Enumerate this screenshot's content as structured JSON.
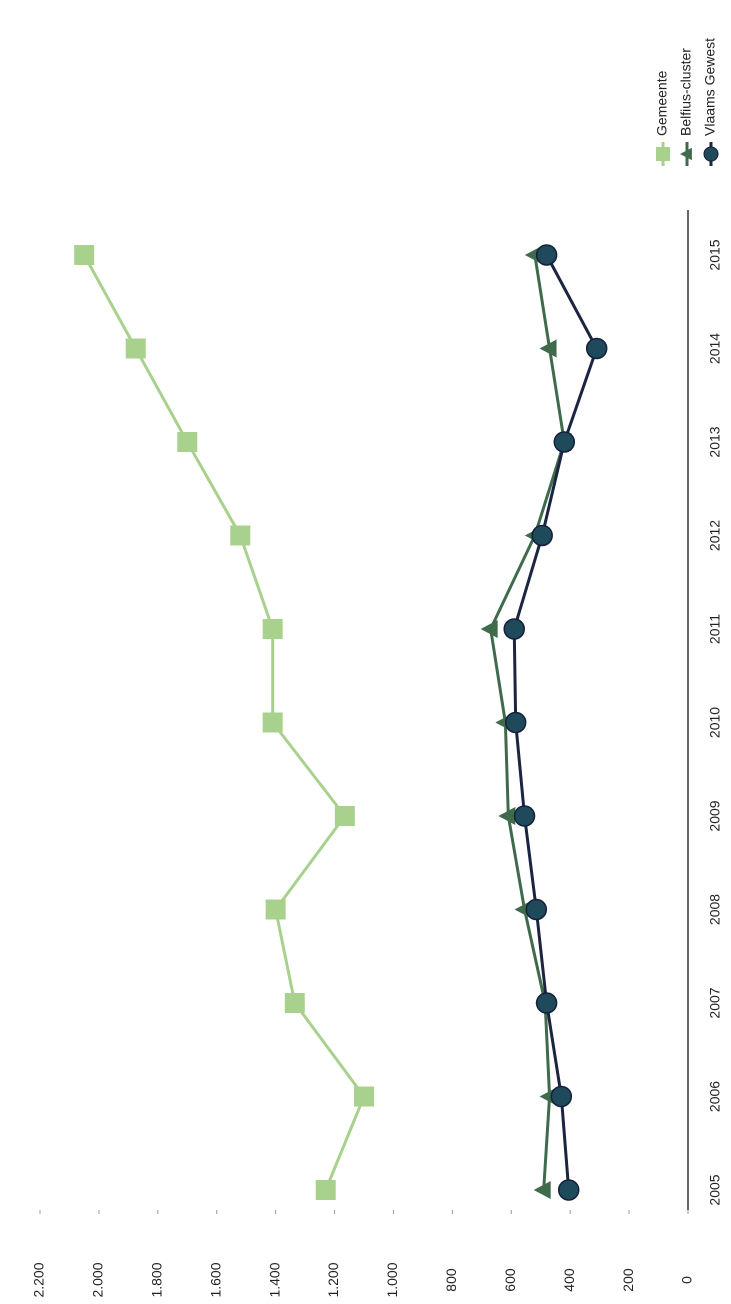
{
  "chart_data": {
    "type": "line",
    "categories": [
      "2005",
      "2006",
      "2007",
      "2008",
      "2009",
      "2010",
      "2011",
      "2012",
      "2013",
      "2014",
      "2015"
    ],
    "series": [
      {
        "name": "Gemeente",
        "color": "#a9d18e",
        "marker": "square",
        "values": [
          1230,
          1100,
          1335,
          1400,
          1165,
          1410,
          1410,
          1520,
          1700,
          1875,
          2050
        ]
      },
      {
        "name": "Belfius-cluster",
        "color": "#3f6b4c",
        "marker": "triangle",
        "values": [
          490,
          470,
          485,
          555,
          610,
          620,
          670,
          520,
          420,
          470,
          520
        ]
      },
      {
        "name": "Vlaams Gewest",
        "color": "#1e4a5c",
        "line_color": "#1b2440",
        "marker": "circle",
        "values": [
          405,
          430,
          480,
          515,
          555,
          585,
          590,
          495,
          420,
          310,
          480
        ]
      }
    ],
    "ylim": [
      0,
      2200
    ],
    "yticks": [
      0,
      200,
      400,
      600,
      800,
      {
        "value": 1000,
        "label": "1.000"
      },
      {
        "value": 1200,
        "label": "1.200"
      },
      {
        "value": 1400,
        "label": "1.400"
      },
      {
        "value": 1600,
        "label": "1.600"
      },
      {
        "value": 1800,
        "label": "1.800"
      },
      {
        "value": 2000,
        "label": "2.000"
      },
      {
        "value": 2200,
        "label": "2.200"
      }
    ],
    "legend": "top-right",
    "rotation": -90
  }
}
